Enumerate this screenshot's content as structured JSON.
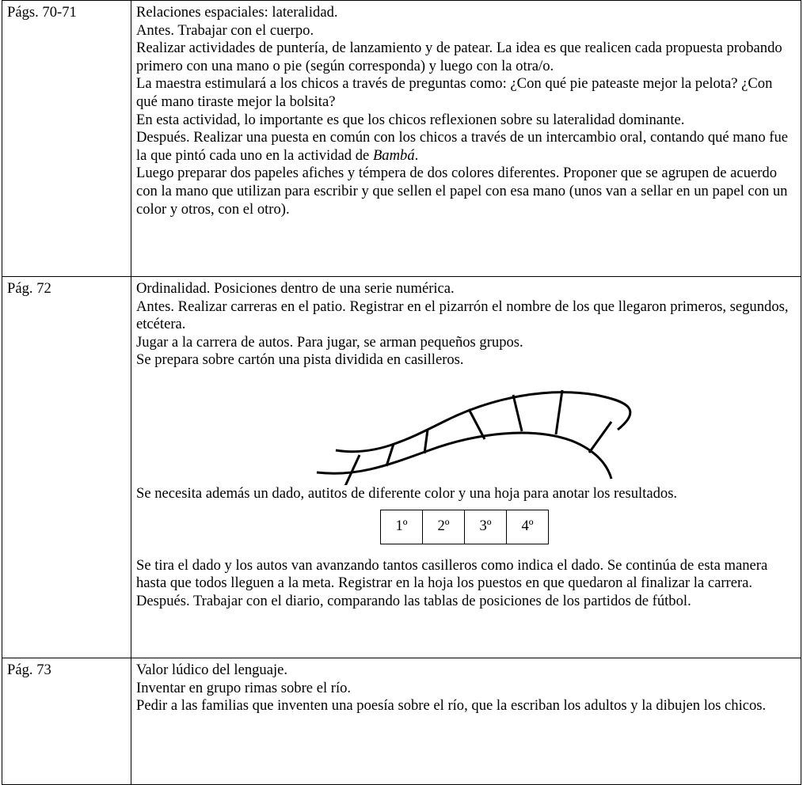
{
  "table": {
    "rows": [
      {
        "page": "Págs. 70-71",
        "paragraphs": [
          "Relaciones espaciales: lateralidad.",
          "Antes. Trabajar con el cuerpo.",
          "Realizar actividades de puntería, de lanzamiento y de patear. La idea es que realicen cada propuesta probando primero con una mano o pie (según corresponda) y luego con la otra/o.",
          "La maestra estimulará a los chicos a través de preguntas como: ¿Con qué pie pateaste mejor la pelota? ¿Con qué mano tiraste mejor la bolsita?",
          "En esta actividad, lo importante es que los chicos reflexionen sobre su lateralidad dominante.",
          [
            "Después. Realizar una puesta en común con los chicos a través de un intercambio oral, contando qué mano fue la que pintó cada uno en la actividad de ",
            "Bambá",
            "."
          ],
          "Luego preparar dos papeles afiches y témpera de dos colores diferentes. Proponer que  se agrupen de acuerdo con la mano que utilizan para escribir y que sellen el papel con esa mano (unos van a sellar en un papel con un color y otros, con el otro)."
        ]
      },
      {
        "page": "Pág. 72",
        "paragraphs": [
          "Ordinalidad. Posiciones dentro de una serie numérica.",
          "Antes. Realizar carreras en el patio. Registrar en el pizarrón el nombre de los que llegaron primeros, segundos, etcétera.",
          "Jugar a la carrera de autos. Para jugar, se arman pequeños grupos.",
          "Se prepara sobre cartón una pista dividida en casilleros.",
          "Se necesita además un dado, autitos de diferente color y una hoja para anotar los resultados.",
          "Se tira el dado y los autos van avanzando tantos casilleros como indica el dado. Se continúa de esta manera hasta que todos lleguen a la meta. Registrar en la hoja los puestos en que quedaron al finalizar la carrera.",
          "Después. Trabajar con el diario, comparando las tablas de posiciones de los partidos de fútbol."
        ],
        "positions": [
          "1º",
          "2º",
          "3º",
          "4º"
        ]
      },
      {
        "page": "Pág. 73",
        "paragraphs": [
          "Valor lúdico del lenguaje.",
          "Inventar en grupo rimas sobre el río.",
          "Pedir a las familias que inventen una poesía sobre el río, que la escriban los adultos y la dibujen los chicos."
        ]
      }
    ]
  }
}
